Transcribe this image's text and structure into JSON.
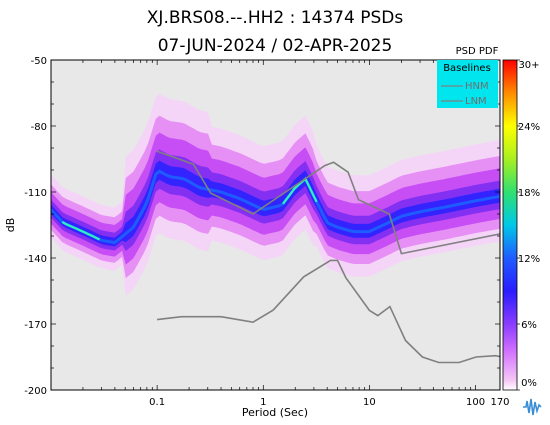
{
  "chart_data": {
    "type": "heatmap",
    "title_line1": "XJ.BRS08.--.HH2 : 14374 PSDs",
    "title_line2": "07-JUN-2024 / 02-APR-2025",
    "xlabel": "Period (Sec)",
    "ylabel": "dB",
    "x_scale": "log",
    "xlim": [
      0.01,
      170
    ],
    "ylim": [
      -200,
      -50
    ],
    "x_tick_labels": [
      "0.1",
      "1",
      "10",
      "100",
      "170"
    ],
    "x_tick_values": [
      0.1,
      1,
      10,
      100,
      170
    ],
    "y_tick_labels": [
      "-50",
      "-80",
      "-110",
      "-140",
      "-170",
      "-200"
    ],
    "y_tick_values": [
      -50,
      -80,
      -110,
      -140,
      -170,
      -200
    ],
    "colorbar": {
      "title": "PSD PDF",
      "tick_labels": [
        "30+",
        "24%",
        "18%",
        "12%",
        "6%",
        "0%"
      ],
      "tick_values": [
        30,
        24,
        18,
        12,
        6,
        0
      ],
      "colors": [
        "#f5c6f5",
        "#c040ff",
        "#4a2bff",
        "#2040ff",
        "#00d8e0",
        "#30e060",
        "#ffff00",
        "#ff8c00",
        "#ff0000"
      ]
    },
    "legend": {
      "title": "Baselines",
      "entries": [
        "HNM",
        "LNM"
      ],
      "position": "top-right",
      "background": "#00e5ee"
    },
    "series": [
      {
        "name": "HNM",
        "color": "#808080",
        "x": [
          0.1,
          0.22,
          0.32,
          0.8,
          3.8,
          4.6,
          6.3,
          7.9,
          15.4,
          20,
          354
        ],
        "y": [
          -91.5,
          -97.4,
          -110.5,
          -120,
          -98,
          -96.5,
          -101,
          -113.5,
          -120,
          -138,
          -126
        ]
      },
      {
        "name": "LNM",
        "color": "#808080",
        "x": [
          0.1,
          0.17,
          0.4,
          0.8,
          1.24,
          2.4,
          4.3,
          5,
          6,
          10,
          12,
          15.6,
          21.9,
          31.6,
          45,
          70,
          101,
          154,
          328
        ],
        "y": [
          -168,
          -166.7,
          -166.7,
          -169.2,
          -163.7,
          -148.6,
          -141.1,
          -141.1,
          -149,
          -163.8,
          -166.2,
          -162.1,
          -177.5,
          -185,
          -187.5,
          -187.5,
          -185,
          -184.4,
          -187.5
        ]
      }
    ],
    "pdf_mode_ridge": {
      "x": [
        0.01,
        0.013,
        0.02,
        0.03,
        0.04,
        0.06,
        0.08,
        0.1,
        0.13,
        0.18,
        0.25,
        0.4,
        0.6,
        1,
        1.5,
        2,
        2.5,
        3,
        4,
        5,
        7,
        10,
        15,
        20,
        30,
        50,
        100,
        170
      ],
      "y": [
        -118,
        -124,
        -128,
        -132,
        -133,
        -126,
        -115,
        -100,
        -103,
        -104,
        -108,
        -110,
        -113,
        -118,
        -116,
        -108,
        -104,
        -112,
        -124,
        -126,
        -128,
        -128,
        -124,
        -121,
        -119,
        -117,
        -114,
        -112
      ]
    }
  }
}
